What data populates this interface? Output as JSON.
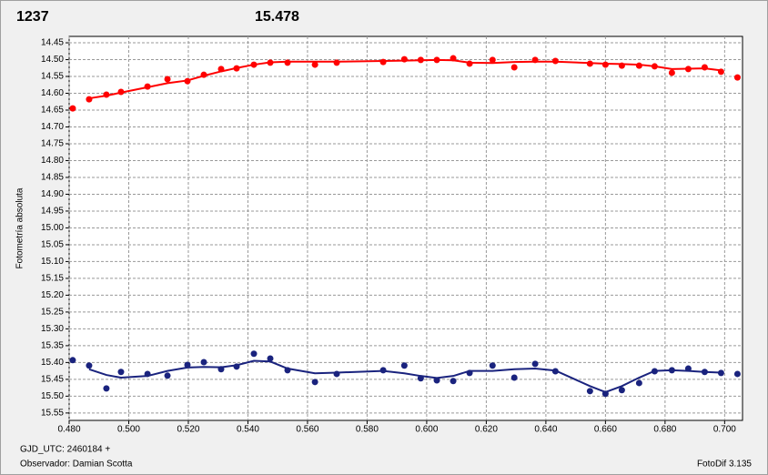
{
  "chart_data": {
    "type": "scatter",
    "header": [
      "1237",
      "15.478"
    ],
    "header_colors": [
      "#ff0000",
      "#1a237e"
    ],
    "y_label": "Fotometría absoluta",
    "footer": [
      "GJD_UTC: 2460184 +",
      "Observador: Damian Scotta"
    ],
    "footer_right": "FotoDif 3.135",
    "xlim": [
      0.48,
      0.706
    ],
    "ylim": [
      14.431,
      15.572
    ],
    "y_inverted": true,
    "grid": true,
    "xticks": [
      {
        "value": 0.48,
        "label": "0.480"
      },
      {
        "value": 0.5,
        "label": "0.500"
      },
      {
        "value": 0.52,
        "label": "0.520"
      },
      {
        "value": 0.54,
        "label": "0.540"
      },
      {
        "value": 0.56,
        "label": "0.560"
      },
      {
        "value": 0.58,
        "label": "0.580"
      },
      {
        "value": 0.6,
        "label": "0.600"
      },
      {
        "value": 0.62,
        "label": "0.620"
      },
      {
        "value": 0.64,
        "label": "0.640"
      },
      {
        "value": 0.66,
        "label": "0.660"
      },
      {
        "value": 0.68,
        "label": "0.680"
      },
      {
        "value": 0.7,
        "label": "0.700"
      }
    ],
    "yticks": [
      {
        "value": 14.45,
        "label": "14.45"
      },
      {
        "value": 14.5,
        "label": "14.50"
      },
      {
        "value": 14.55,
        "label": "14.55"
      },
      {
        "value": 14.6,
        "label": "14.60"
      },
      {
        "value": 14.65,
        "label": "14.65"
      },
      {
        "value": 14.7,
        "label": "14.70"
      },
      {
        "value": 14.75,
        "label": "14.75"
      },
      {
        "value": 14.8,
        "label": "14.80"
      },
      {
        "value": 14.85,
        "label": "14.85"
      },
      {
        "value": 14.9,
        "label": "14.90"
      },
      {
        "value": 14.95,
        "label": "14.95"
      },
      {
        "value": 15.0,
        "label": "15.00"
      },
      {
        "value": 15.05,
        "label": "15.05"
      },
      {
        "value": 15.1,
        "label": "15.10"
      },
      {
        "value": 15.15,
        "label": "15.15"
      },
      {
        "value": 15.2,
        "label": "15.20"
      },
      {
        "value": 15.25,
        "label": "15.25"
      },
      {
        "value": 15.3,
        "label": "15.30"
      },
      {
        "value": 15.35,
        "label": "15.35"
      },
      {
        "value": 15.4,
        "label": "15.40"
      },
      {
        "value": 15.45,
        "label": "15.45"
      },
      {
        "value": 15.5,
        "label": "15.50"
      },
      {
        "value": 15.55,
        "label": "15.55"
      }
    ],
    "x": [
      0.4812,
      0.4867,
      0.4925,
      0.4974,
      0.5063,
      0.513,
      0.5197,
      0.5252,
      0.531,
      0.5362,
      0.542,
      0.5475,
      0.5533,
      0.5625,
      0.5698,
      0.5854,
      0.5925,
      0.598,
      0.6034,
      0.6089,
      0.6144,
      0.6221,
      0.6294,
      0.6364,
      0.6432,
      0.6548,
      0.66,
      0.6655,
      0.6713,
      0.6765,
      0.6823,
      0.6878,
      0.6933,
      0.6988,
      0.7043
    ],
    "fit_x": [
      0.4867,
      0.4925,
      0.4974,
      0.5063,
      0.513,
      0.5197,
      0.5252,
      0.531,
      0.5362,
      0.542,
      0.5475,
      0.5533,
      0.5625,
      0.5698,
      0.5854,
      0.5925,
      0.598,
      0.6034,
      0.6089,
      0.6144,
      0.6221,
      0.6294,
      0.6364,
      0.6432,
      0.6548,
      0.66,
      0.6655,
      0.6713,
      0.6765,
      0.6823,
      0.6878,
      0.6933,
      0.6988
    ],
    "series": [
      {
        "color": "#ff0000",
        "values": [
          14.645,
          14.618,
          14.604,
          14.596,
          14.58,
          14.558,
          14.564,
          14.545,
          14.528,
          14.526,
          14.515,
          14.509,
          14.509,
          14.515,
          14.509,
          14.507,
          14.499,
          14.501,
          14.501,
          14.496,
          14.512,
          14.501,
          14.523,
          14.501,
          14.504,
          14.512,
          14.515,
          14.518,
          14.518,
          14.52,
          14.539,
          14.528,
          14.523,
          14.536,
          14.553
        ],
        "fit": [
          14.615,
          14.607,
          14.598,
          14.582,
          14.57,
          14.562,
          14.548,
          14.535,
          14.525,
          14.515,
          14.508,
          14.506,
          14.506,
          14.506,
          14.504,
          14.503,
          14.502,
          14.501,
          14.502,
          14.509,
          14.51,
          14.507,
          14.506,
          14.506,
          14.51,
          14.512,
          14.513,
          14.515,
          14.52,
          14.528,
          14.527,
          14.526,
          14.532
        ]
      },
      {
        "color": "#1a237e",
        "values": [
          15.393,
          15.409,
          15.477,
          15.428,
          15.434,
          15.439,
          15.407,
          15.399,
          15.42,
          15.412,
          15.374,
          15.388,
          15.423,
          15.458,
          15.434,
          15.423,
          15.409,
          15.447,
          15.453,
          15.455,
          15.431,
          15.409,
          15.445,
          15.404,
          15.426,
          15.485,
          15.493,
          15.482,
          15.461,
          15.426,
          15.423,
          15.418,
          15.428,
          15.431,
          15.434
        ],
        "fit": [
          15.42,
          15.437,
          15.445,
          15.44,
          15.425,
          15.415,
          15.413,
          15.414,
          15.408,
          15.395,
          15.397,
          15.418,
          15.432,
          15.43,
          15.425,
          15.432,
          15.44,
          15.446,
          15.44,
          15.425,
          15.425,
          15.42,
          15.418,
          15.424,
          15.47,
          15.488,
          15.47,
          15.445,
          15.425,
          15.423,
          15.425,
          15.428,
          15.43
        ]
      }
    ]
  }
}
